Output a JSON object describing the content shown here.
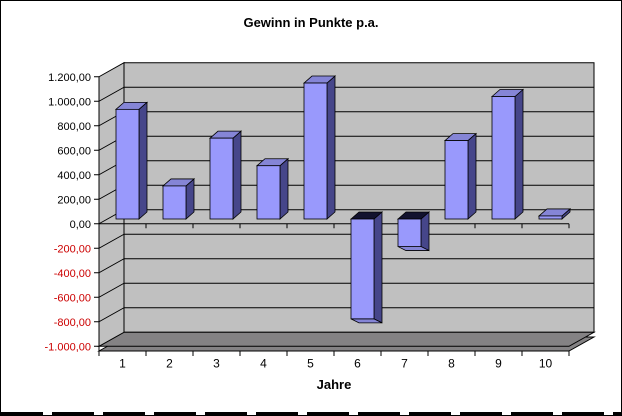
{
  "chart_data": {
    "type": "bar",
    "style": "3d-column",
    "title": "Gewinn in Punkte p.a.",
    "xlabel": "Jahre",
    "ylabel": "",
    "categories": [
      "1",
      "2",
      "3",
      "4",
      "5",
      "6",
      "7",
      "8",
      "9",
      "10"
    ],
    "values": [
      895,
      270,
      660,
      435,
      1110,
      -815,
      -225,
      640,
      1000,
      25
    ],
    "ylim": [
      -1000,
      1200
    ],
    "y_step": 200,
    "y_tick_labels": [
      "1.200,00",
      "1.000,00",
      "800,00",
      "600,00",
      "400,00",
      "200,00",
      "0,00",
      "-200,00",
      "-400,00",
      "-600,00",
      "-800,00",
      "-1.000,00"
    ],
    "grid": true,
    "legend": "none",
    "colors": {
      "positive_tick_label": "#000000",
      "negative_tick_label": "#CC0000",
      "bar_front": "#9999FC",
      "bar_top": "#8585D6",
      "bar_side": "#46468A",
      "bar_negative_cap": "#12122E",
      "bar_negative_bottom": "#8585D6",
      "wall": "#C0C0C0",
      "floor": "#848284",
      "gridline": "#000000",
      "background": "#FFFFFF"
    }
  }
}
